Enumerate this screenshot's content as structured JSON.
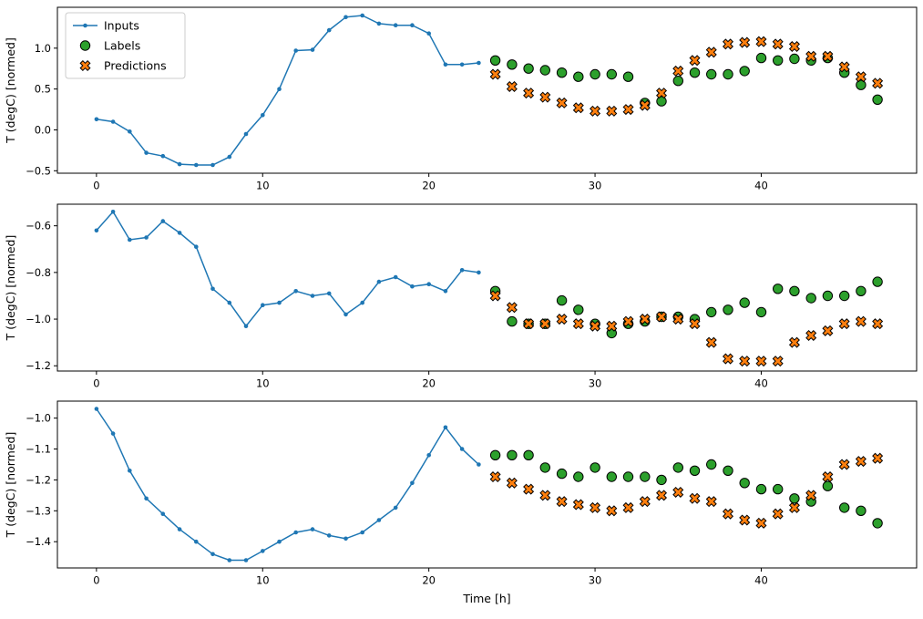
{
  "figure": {
    "background": "#ffffff"
  },
  "colors": {
    "inputs": "#1f77b4",
    "labels": "#2ca02c",
    "predictions": "#ff7f0e",
    "marker_edge": "#000000",
    "axis": "#000000",
    "text": "#000000",
    "legend_border": "#cccccc"
  },
  "chart_data": [
    {
      "type": "line+scatter",
      "title": "",
      "xlabel": "",
      "ylabel": "T (degC) [normed]",
      "xlim": [
        -2.35,
        49.35
      ],
      "ylim": [
        -0.53,
        1.5
      ],
      "grid": false,
      "legend": true,
      "legend_position": "upper-left",
      "xticks": {
        "values": [
          0,
          10,
          20,
          30,
          40
        ],
        "labels": [
          "0",
          "10",
          "20",
          "30",
          "40"
        ]
      },
      "yticks": {
        "values": [
          -0.5,
          0.0,
          0.5,
          1.0
        ],
        "labels": [
          "−0.5",
          "0.0",
          "0.5",
          "1.0"
        ]
      },
      "series": [
        {
          "name": "Inputs",
          "kind": "line",
          "color_key": "inputs",
          "x": [
            0,
            1,
            2,
            3,
            4,
            5,
            6,
            7,
            8,
            9,
            10,
            11,
            12,
            13,
            14,
            15,
            16,
            17,
            18,
            19,
            20,
            21,
            22,
            23
          ],
          "values": [
            0.13,
            0.1,
            -0.02,
            -0.28,
            -0.32,
            -0.42,
            -0.43,
            -0.43,
            -0.33,
            -0.05,
            0.18,
            0.5,
            0.97,
            0.98,
            1.22,
            1.38,
            1.4,
            1.3,
            1.28,
            1.28,
            1.18,
            0.8,
            0.8,
            0.82
          ]
        },
        {
          "name": "Labels",
          "kind": "circle",
          "color_key": "labels",
          "x": [
            24,
            25,
            26,
            27,
            28,
            29,
            30,
            31,
            32,
            33,
            34,
            35,
            36,
            37,
            38,
            39,
            40,
            41,
            42,
            43,
            44,
            45,
            46,
            47
          ],
          "values": [
            0.85,
            0.8,
            0.75,
            0.73,
            0.7,
            0.65,
            0.68,
            0.68,
            0.65,
            0.33,
            0.35,
            0.6,
            0.7,
            0.68,
            0.68,
            0.72,
            0.88,
            0.85,
            0.87,
            0.85,
            0.88,
            0.7,
            0.55,
            0.37
          ]
        },
        {
          "name": "Predictions",
          "kind": "x",
          "color_key": "predictions",
          "x": [
            24,
            25,
            26,
            27,
            28,
            29,
            30,
            31,
            32,
            33,
            34,
            35,
            36,
            37,
            38,
            39,
            40,
            41,
            42,
            43,
            44,
            45,
            46,
            47
          ],
          "values": [
            0.68,
            0.53,
            0.45,
            0.4,
            0.33,
            0.27,
            0.23,
            0.23,
            0.25,
            0.3,
            0.45,
            0.72,
            0.85,
            0.95,
            1.05,
            1.07,
            1.08,
            1.05,
            1.02,
            0.9,
            0.9,
            0.77,
            0.65,
            0.57
          ]
        }
      ]
    },
    {
      "type": "line+scatter",
      "title": "",
      "xlabel": "",
      "ylabel": "T (degC) [normed]",
      "xlim": [
        -2.35,
        49.35
      ],
      "ylim": [
        -1.2225,
        -0.5075
      ],
      "grid": false,
      "legend": false,
      "xticks": {
        "values": [
          0,
          10,
          20,
          30,
          40
        ],
        "labels": [
          "0",
          "10",
          "20",
          "30",
          "40"
        ]
      },
      "yticks": {
        "values": [
          -0.6,
          -0.8,
          -1.0,
          -1.2
        ],
        "labels": [
          "−0.6",
          "−0.8",
          "−1.0",
          "−1.2"
        ]
      },
      "series": [
        {
          "name": "Inputs",
          "kind": "line",
          "color_key": "inputs",
          "x": [
            0,
            1,
            2,
            3,
            4,
            5,
            6,
            7,
            8,
            9,
            10,
            11,
            12,
            13,
            14,
            15,
            16,
            17,
            18,
            19,
            20,
            21,
            22,
            23
          ],
          "values": [
            -0.62,
            -0.54,
            -0.66,
            -0.65,
            -0.58,
            -0.63,
            -0.69,
            -0.87,
            -0.93,
            -1.03,
            -0.94,
            -0.93,
            -0.88,
            -0.9,
            -0.89,
            -0.98,
            -0.93,
            -0.84,
            -0.82,
            -0.86,
            -0.85,
            -0.88,
            -0.79,
            -0.8
          ]
        },
        {
          "name": "Labels",
          "kind": "circle",
          "color_key": "labels",
          "x": [
            24,
            25,
            26,
            27,
            28,
            29,
            30,
            31,
            32,
            33,
            34,
            35,
            36,
            37,
            38,
            39,
            40,
            41,
            42,
            43,
            44,
            45,
            46,
            47
          ],
          "values": [
            -0.88,
            -1.01,
            -1.02,
            -1.02,
            -0.92,
            -0.96,
            -1.02,
            -1.06,
            -1.02,
            -1.01,
            -0.99,
            -0.99,
            -1.0,
            -0.97,
            -0.96,
            -0.93,
            -0.97,
            -0.87,
            -0.88,
            -0.91,
            -0.9,
            -0.9,
            -0.88,
            -0.84
          ]
        },
        {
          "name": "Predictions",
          "kind": "x",
          "color_key": "predictions",
          "x": [
            24,
            25,
            26,
            27,
            28,
            29,
            30,
            31,
            32,
            33,
            34,
            35,
            36,
            37,
            38,
            39,
            40,
            41,
            42,
            43,
            44,
            45,
            46,
            47
          ],
          "values": [
            -0.9,
            -0.95,
            -1.02,
            -1.02,
            -1.0,
            -1.02,
            -1.03,
            -1.03,
            -1.01,
            -1.0,
            -0.99,
            -1.0,
            -1.02,
            -1.1,
            -1.17,
            -1.18,
            -1.18,
            -1.18,
            -1.1,
            -1.07,
            -1.05,
            -1.02,
            -1.01,
            -1.02
          ]
        }
      ]
    },
    {
      "type": "line+scatter",
      "title": "",
      "xlabel": "Time [h]",
      "ylabel": "T (degC) [normed]",
      "xlim": [
        -2.35,
        49.35
      ],
      "ylim": [
        -1.485,
        -0.945
      ],
      "grid": false,
      "legend": false,
      "xticks": {
        "values": [
          0,
          10,
          20,
          30,
          40
        ],
        "labels": [
          "0",
          "10",
          "20",
          "30",
          "40"
        ]
      },
      "yticks": {
        "values": [
          -1.0,
          -1.1,
          -1.2,
          -1.3,
          -1.4
        ],
        "labels": [
          "−1.0",
          "−1.1",
          "−1.2",
          "−1.3",
          "−1.4"
        ]
      },
      "series": [
        {
          "name": "Inputs",
          "kind": "line",
          "color_key": "inputs",
          "x": [
            0,
            1,
            2,
            3,
            4,
            5,
            6,
            7,
            8,
            9,
            10,
            11,
            12,
            13,
            14,
            15,
            16,
            17,
            18,
            19,
            20,
            21,
            22,
            23
          ],
          "values": [
            -0.97,
            -1.05,
            -1.17,
            -1.26,
            -1.31,
            -1.36,
            -1.4,
            -1.44,
            -1.46,
            -1.46,
            -1.43,
            -1.4,
            -1.37,
            -1.36,
            -1.38,
            -1.39,
            -1.37,
            -1.33,
            -1.29,
            -1.21,
            -1.12,
            -1.03,
            -1.1,
            -1.15
          ]
        },
        {
          "name": "Labels",
          "kind": "circle",
          "color_key": "labels",
          "x": [
            24,
            25,
            26,
            27,
            28,
            29,
            30,
            31,
            32,
            33,
            34,
            35,
            36,
            37,
            38,
            39,
            40,
            41,
            42,
            43,
            44,
            45,
            46,
            47
          ],
          "values": [
            -1.12,
            -1.12,
            -1.12,
            -1.16,
            -1.18,
            -1.19,
            -1.16,
            -1.19,
            -1.19,
            -1.19,
            -1.2,
            -1.16,
            -1.17,
            -1.15,
            -1.17,
            -1.21,
            -1.23,
            -1.23,
            -1.26,
            -1.27,
            -1.22,
            -1.29,
            -1.3,
            -1.34
          ]
        },
        {
          "name": "Predictions",
          "kind": "x",
          "color_key": "predictions",
          "x": [
            24,
            25,
            26,
            27,
            28,
            29,
            30,
            31,
            32,
            33,
            34,
            35,
            36,
            37,
            38,
            39,
            40,
            41,
            42,
            43,
            44,
            45,
            46,
            47
          ],
          "values": [
            -1.19,
            -1.21,
            -1.23,
            -1.25,
            -1.27,
            -1.28,
            -1.29,
            -1.3,
            -1.29,
            -1.27,
            -1.25,
            -1.24,
            -1.26,
            -1.27,
            -1.31,
            -1.33,
            -1.34,
            -1.31,
            -1.29,
            -1.25,
            -1.19,
            -1.15,
            -1.14,
            -1.13
          ]
        }
      ]
    }
  ]
}
